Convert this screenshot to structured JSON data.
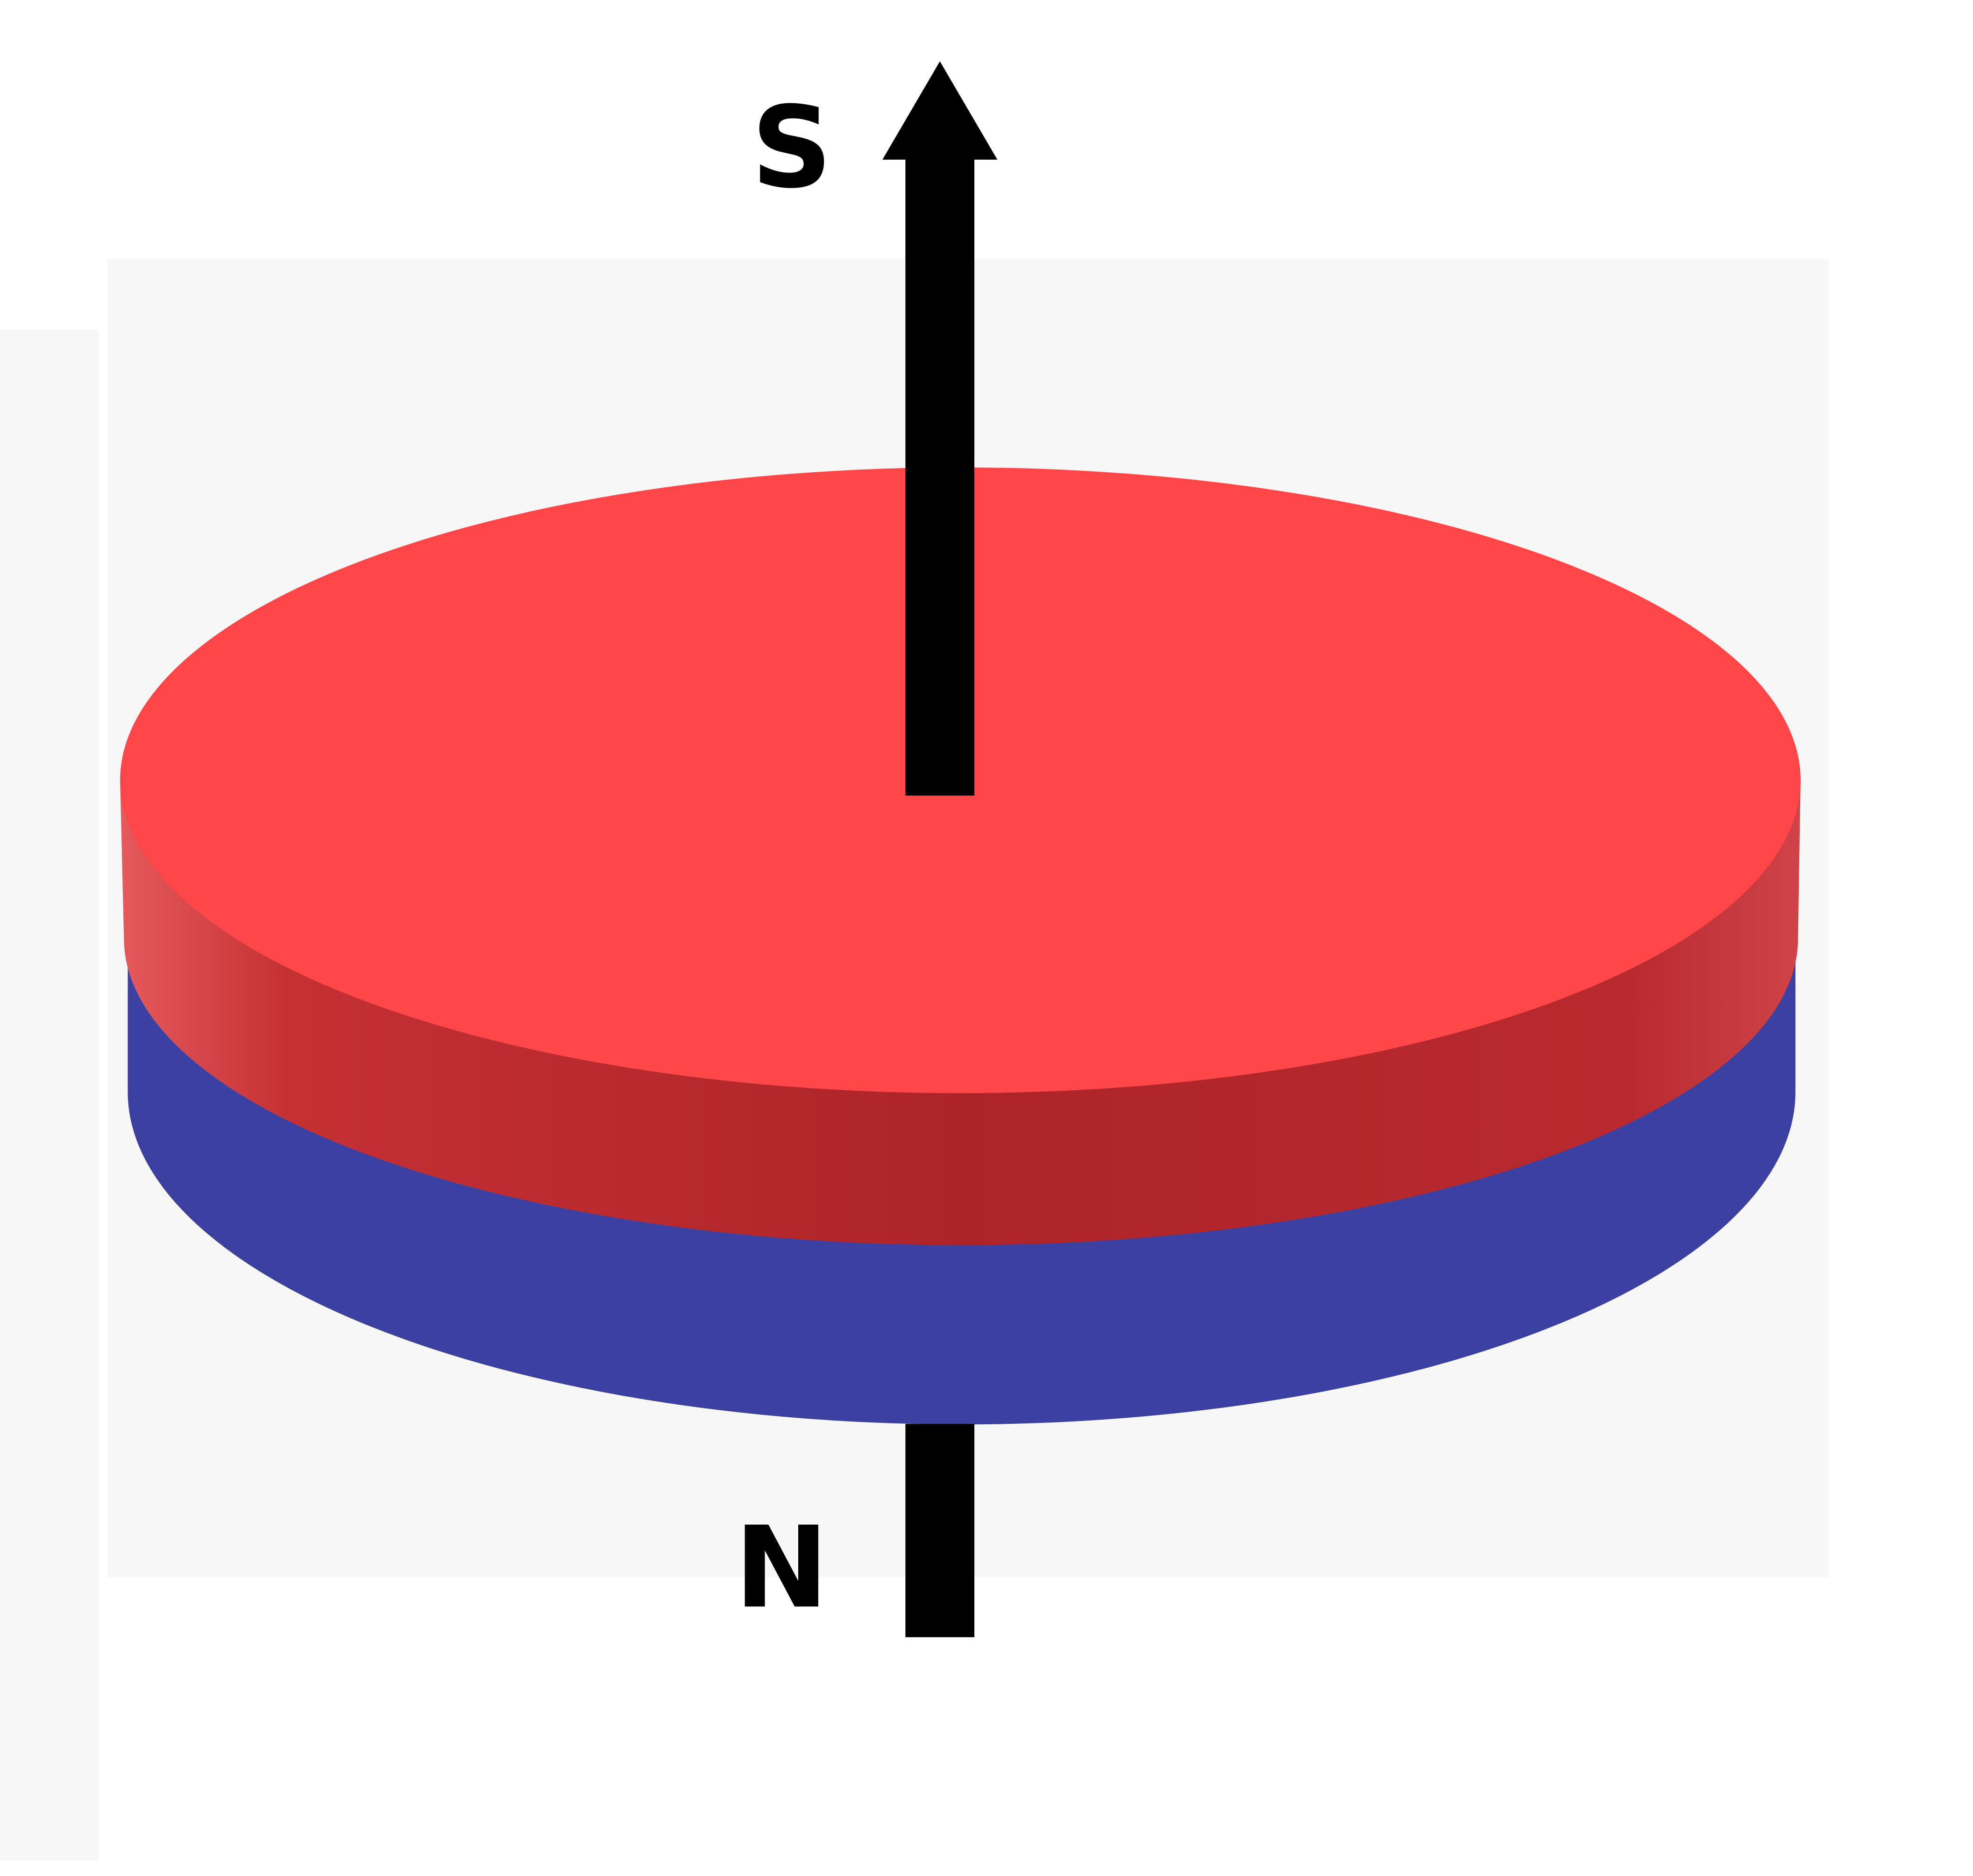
{
  "diagram": {
    "labels": {
      "top_pole": "S",
      "bottom_pole": "N"
    },
    "colors": {
      "top_face": "#ff474a",
      "red_band": "#b0262a",
      "blue_band": "#3c40a0",
      "arrow": "#000000",
      "panel": "#f7f7f7"
    },
    "icons": {
      "magnetization": "arrow-up-icon"
    }
  }
}
